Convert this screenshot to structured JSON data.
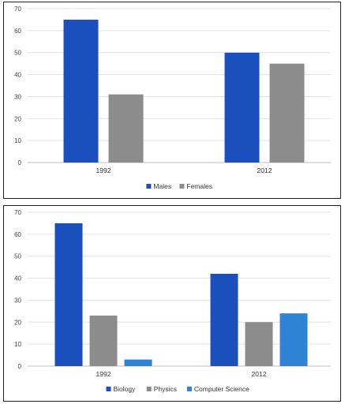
{
  "chart_data": [
    {
      "type": "bar",
      "categories": [
        "1992",
        "2012"
      ],
      "series": [
        {
          "name": "Males",
          "values": [
            65,
            50
          ],
          "color": "#1a4fbd"
        },
        {
          "name": "Females",
          "values": [
            31,
            45
          ],
          "color": "#8c8c8c"
        }
      ],
      "ylim": [
        0,
        70
      ],
      "yticks": [
        0,
        10,
        20,
        30,
        40,
        50,
        60,
        70
      ],
      "grid": true,
      "legend": "bottom-center"
    },
    {
      "type": "bar",
      "categories": [
        "1992",
        "2012"
      ],
      "series": [
        {
          "name": "Biology",
          "values": [
            65,
            42
          ],
          "color": "#1a4fbd"
        },
        {
          "name": "Physics",
          "values": [
            23,
            20
          ],
          "color": "#8c8c8c"
        },
        {
          "name": "Computer Science",
          "values": [
            3,
            24
          ],
          "color": "#2f83d6"
        }
      ],
      "ylim": [
        0,
        70
      ],
      "yticks": [
        0,
        10,
        20,
        30,
        40,
        50,
        60,
        70
      ],
      "grid": true,
      "legend": "bottom-center"
    }
  ]
}
